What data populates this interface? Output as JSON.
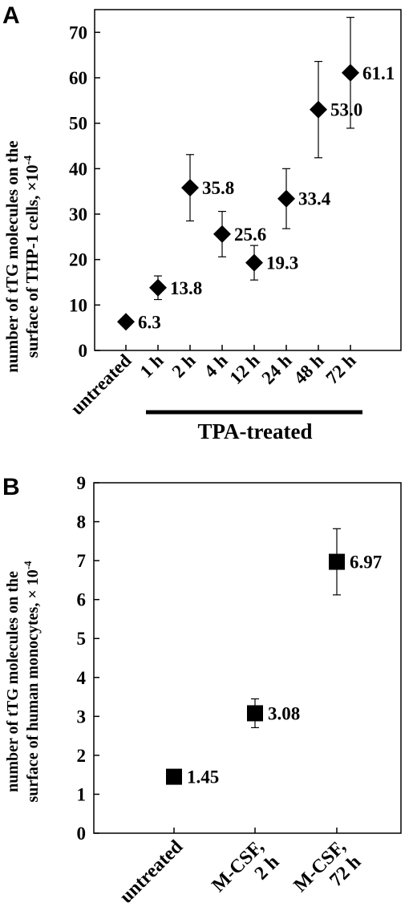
{
  "chart_data": [
    {
      "panel_label": "A",
      "type": "scatter",
      "ylabel_line1": "number of tTG molecules on the",
      "ylabel_line2": "surface of THP-1 cells, ×10",
      "ylabel_exp": "-4",
      "ylim": [
        0,
        75
      ],
      "yticks": [
        0,
        10,
        20,
        30,
        40,
        50,
        60,
        70
      ],
      "categories": [
        "untreated",
        "1 h",
        "2 h",
        "4 h",
        "12 h",
        "24 h",
        "48 h",
        "72 h"
      ],
      "group_label": "TPA-treated",
      "marker": "diamond",
      "points": [
        {
          "category": "untreated",
          "y": 6.3,
          "err": 0.4,
          "label": "6.3"
        },
        {
          "category": "1 h",
          "y": 13.8,
          "err": 2.6,
          "label": "13.8"
        },
        {
          "category": "2 h",
          "y": 35.8,
          "err": 7.3,
          "label": "35.8"
        },
        {
          "category": "4 h",
          "y": 25.6,
          "err": 5.0,
          "label": "25.6"
        },
        {
          "category": "12 h",
          "y": 19.3,
          "err": 3.8,
          "label": "19.3"
        },
        {
          "category": "24 h",
          "y": 33.4,
          "err": 6.6,
          "label": "33.4"
        },
        {
          "category": "48 h",
          "y": 53.0,
          "err": 10.6,
          "label": "53.0"
        },
        {
          "category": "72 h",
          "y": 61.1,
          "err": 12.2,
          "label": "61.1"
        }
      ]
    },
    {
      "panel_label": "B",
      "type": "scatter",
      "ylabel_line1": "number of tTG molecules on the",
      "ylabel_line2": "surface of human monocytes, × 10",
      "ylabel_exp": "-4",
      "ylim": [
        0,
        9
      ],
      "yticks": [
        0,
        1,
        2,
        3,
        4,
        5,
        6,
        7,
        8,
        9
      ],
      "categories": [
        [
          "untreated"
        ],
        [
          "M-CSF,",
          "2 h"
        ],
        [
          "M-CSF,",
          "72 h"
        ]
      ],
      "marker": "square",
      "points": [
        {
          "y": 1.45,
          "err": 0.05,
          "label": "1.45"
        },
        {
          "y": 3.08,
          "err": 0.37,
          "label": "3.08"
        },
        {
          "y": 6.97,
          "err": 0.85,
          "label": "6.97"
        }
      ]
    }
  ]
}
